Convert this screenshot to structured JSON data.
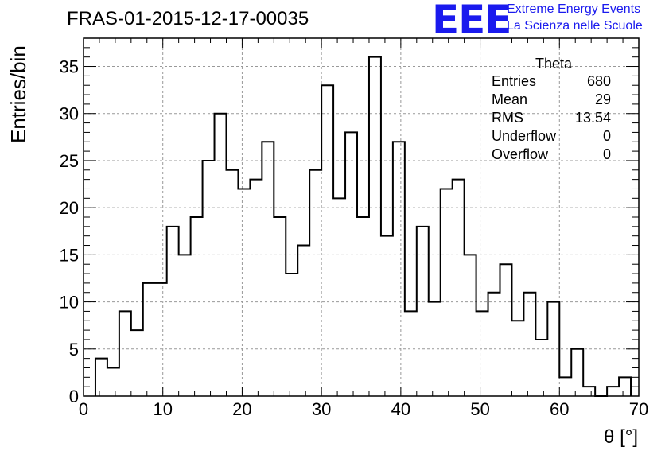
{
  "header": {
    "title": "FRAS-01-2015-12-17-00035",
    "logo_text": "EEE",
    "logo_line1": "Extreme Energy Events",
    "logo_line2": "La Scienza nelle Scuole"
  },
  "stats_box": {
    "name": "Theta",
    "rows": [
      {
        "label": "Entries",
        "value": "680"
      },
      {
        "label": "Mean",
        "value": "29"
      },
      {
        "label": "RMS",
        "value": "13.54"
      },
      {
        "label": "Underflow",
        "value": "0"
      },
      {
        "label": "Overflow",
        "value": "0"
      }
    ]
  },
  "colors": {
    "line": "#000000",
    "grid": "#999999",
    "logo": "#1a1aee"
  },
  "chart_data": {
    "type": "bar",
    "style": "step-histogram",
    "title": "FRAS-01-2015-12-17-00035",
    "xlabel": "θ [°]",
    "ylabel": "Entries/bin",
    "xlim": [
      0,
      70
    ],
    "ylim": [
      0,
      38
    ],
    "grid": true,
    "bin_width": 1.5,
    "bin_start": 1.5,
    "x_ticks": [
      0,
      10,
      20,
      30,
      40,
      50,
      60,
      70
    ],
    "y_ticks": [
      0,
      5,
      10,
      15,
      20,
      25,
      30,
      35
    ],
    "values": [
      4,
      3,
      9,
      7,
      12,
      12,
      18,
      15,
      19,
      25,
      30,
      24,
      22,
      23,
      27,
      19,
      13,
      16,
      24,
      33,
      21,
      28,
      19,
      36,
      17,
      27,
      9,
      18,
      10,
      22,
      23,
      15,
      9,
      11,
      14,
      8,
      11,
      6,
      10,
      2,
      5,
      1,
      0,
      1,
      2
    ]
  }
}
